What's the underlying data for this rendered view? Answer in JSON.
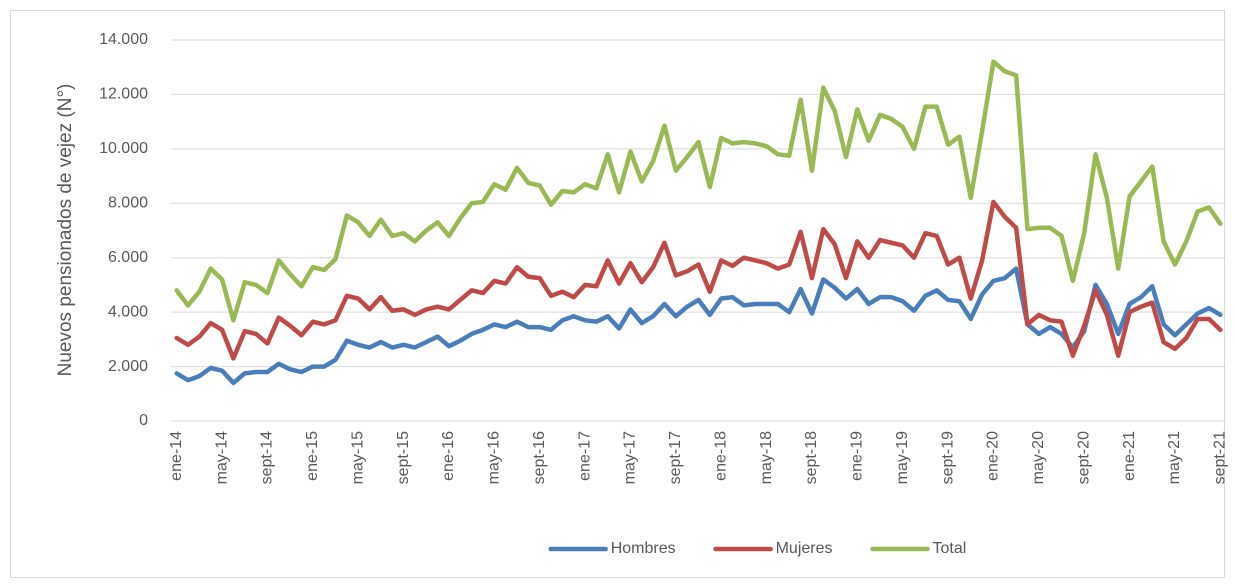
{
  "chart_data": {
    "type": "line",
    "y_label": "Nuevos pensionados de vejez (N°)",
    "categories": [
      "ene-14",
      null,
      null,
      null,
      "may-14",
      null,
      null,
      null,
      "sept-14",
      null,
      null,
      null,
      "ene-15",
      null,
      null,
      null,
      "may-15",
      null,
      null,
      null,
      "sept-15",
      null,
      null,
      null,
      "ene-16",
      null,
      null,
      null,
      "may-16",
      null,
      null,
      null,
      "sept-16",
      null,
      null,
      null,
      "ene-17",
      null,
      null,
      null,
      "may-17",
      null,
      null,
      null,
      "sept-17",
      null,
      null,
      null,
      "ene-18",
      null,
      null,
      null,
      "may-18",
      null,
      null,
      null,
      "sept-18",
      null,
      null,
      null,
      "ene-19",
      null,
      null,
      null,
      "may-19",
      null,
      null,
      null,
      "sept-19",
      null,
      null,
      null,
      "ene-20",
      null,
      null,
      null,
      "may-20",
      null,
      null,
      null,
      "sept-20",
      null,
      null,
      null,
      "ene-21",
      null,
      null,
      null,
      "may-21",
      null,
      null,
      null,
      "sept-21"
    ],
    "series": [
      {
        "name": "Hombres",
        "color": "#4a7ebb",
        "values": [
          1750,
          1500,
          1650,
          1950,
          1850,
          1400,
          1750,
          1800,
          1800,
          2100,
          1900,
          1800,
          2000,
          2000,
          2250,
          2950,
          2800,
          2700,
          2900,
          2700,
          2800,
          2700,
          2900,
          3100,
          2750,
          2950,
          3200,
          3350,
          3550,
          3450,
          3650,
          3450,
          3450,
          3350,
          3700,
          3850,
          3700,
          3650,
          3850,
          3400,
          4100,
          3600,
          3850,
          4300,
          3850,
          4200,
          4450,
          3900,
          4500,
          4550,
          4250,
          4300,
          4300,
          4300,
          4000,
          4850,
          3950,
          5200,
          4900,
          4500,
          4850,
          4300,
          4550,
          4550,
          4400,
          4050,
          4600,
          4800,
          4450,
          4400,
          3750,
          4650,
          5150,
          5250,
          5600,
          3550,
          3200,
          3450,
          3200,
          2700,
          3300,
          5000,
          4300,
          3200,
          4300,
          4550,
          4950,
          3550,
          3150,
          3550,
          3950,
          4150,
          3900
        ]
      },
      {
        "name": "Mujeres",
        "color": "#be4b48",
        "values": [
          3050,
          2800,
          3100,
          3600,
          3350,
          2300,
          3300,
          3200,
          2850,
          3800,
          3500,
          3150,
          3650,
          3550,
          3700,
          4600,
          4500,
          4100,
          4550,
          4050,
          4100,
          3900,
          4100,
          4200,
          4100,
          4450,
          4800,
          4700,
          5150,
          5050,
          5650,
          5300,
          5250,
          4600,
          4750,
          4550,
          5000,
          4950,
          5900,
          5050,
          5800,
          5100,
          5650,
          6550,
          5350,
          5500,
          5750,
          4750,
          5900,
          5700,
          6000,
          5900,
          5800,
          5600,
          5750,
          6950,
          5250,
          7050,
          6500,
          5250,
          6600,
          6000,
          6650,
          6550,
          6450,
          6000,
          6900,
          6800,
          5750,
          6000,
          4500,
          5900,
          8050,
          7500,
          7100,
          3550,
          3900,
          3700,
          3650,
          2400,
          3500,
          4800,
          3900,
          2400,
          4000,
          4200,
          4350,
          2900,
          2650,
          3050,
          3750,
          3750,
          3350
        ]
      },
      {
        "name": "Total",
        "color": "#98b954",
        "values": [
          4800,
          4250,
          4750,
          5600,
          5200,
          3700,
          5100,
          5000,
          4700,
          5900,
          5400,
          4950,
          5650,
          5550,
          5950,
          7550,
          7300,
          6800,
          7400,
          6800,
          6900,
          6600,
          7000,
          7300,
          6800,
          7450,
          8000,
          8050,
          8700,
          8500,
          9300,
          8750,
          8650,
          7950,
          8450,
          8400,
          8700,
          8550,
          9800,
          8400,
          9900,
          8800,
          9550,
          10850,
          9200,
          9700,
          10250,
          8600,
          10400,
          10200,
          10250,
          10200,
          10100,
          9800,
          9750,
          11800,
          9200,
          12250,
          11400,
          9700,
          11450,
          10300,
          11250,
          11100,
          10800,
          10000,
          11550,
          11550,
          10150,
          10450,
          8200,
          10650,
          13200,
          12850,
          12700,
          7050,
          7100,
          7100,
          6800,
          5150,
          6900,
          9800,
          8200,
          5600,
          8250,
          8800,
          9350,
          6600,
          5750,
          6600,
          7700,
          7850,
          7250
        ]
      }
    ],
    "ylim": [
      0,
      14000
    ],
    "yticks": [
      0,
      {
        "value": 2000,
        "label": "2.000"
      },
      {
        "value": 4000,
        "label": "4.000"
      },
      {
        "value": 6000,
        "label": "6.000"
      },
      {
        "value": 8000,
        "label": "8.000"
      },
      {
        "value": 10000,
        "label": "10.000"
      },
      {
        "value": 12000,
        "label": "12.000"
      },
      {
        "value": 14000,
        "label": "14.000"
      }
    ],
    "grid": true,
    "legend": "bottom"
  }
}
